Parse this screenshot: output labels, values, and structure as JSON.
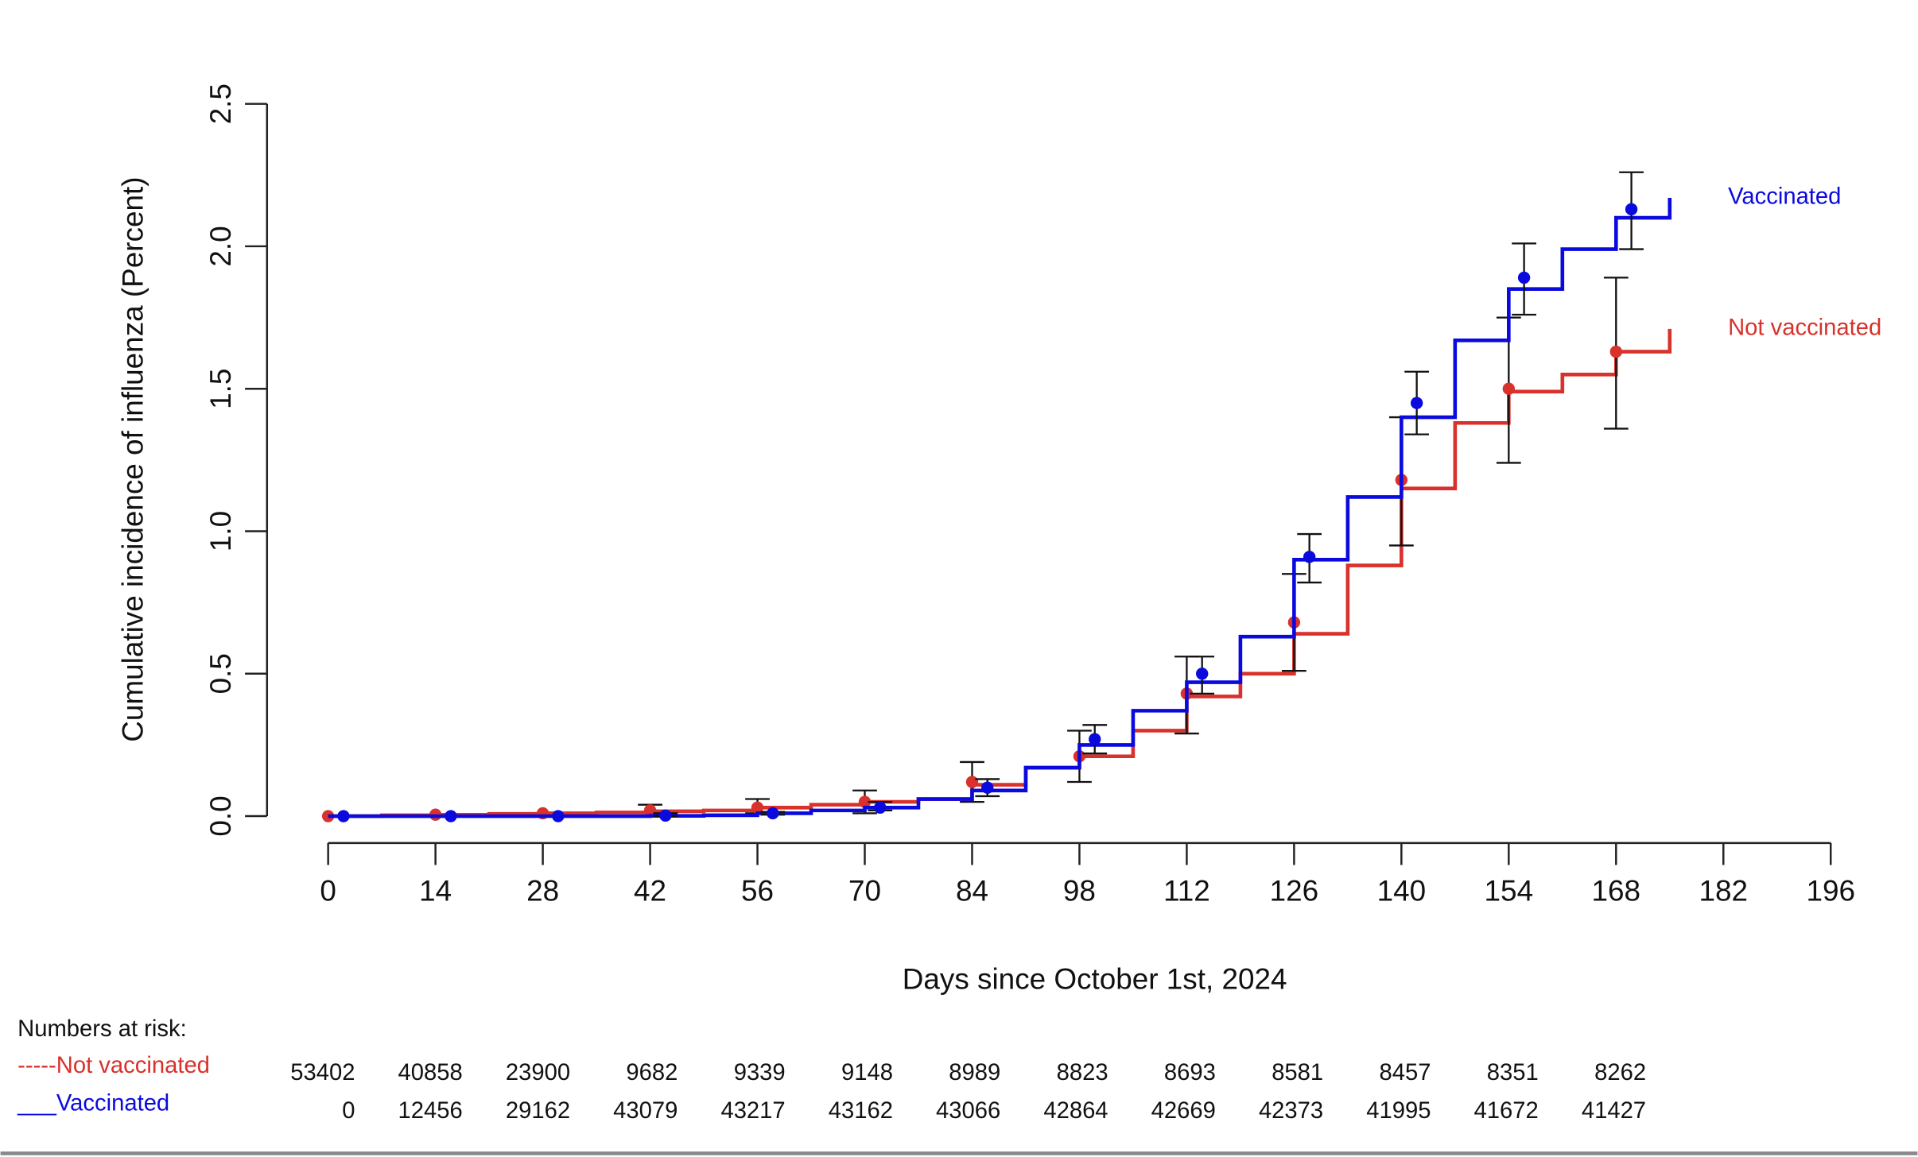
{
  "chart_data": {
    "type": "step",
    "xlabel": "Days since October 1st, 2024",
    "ylabel": "Cumulative incidence of influenza (Percent)",
    "xlim": [
      0,
      196
    ],
    "xticks": [
      0,
      14,
      28,
      42,
      56,
      70,
      84,
      98,
      112,
      126,
      140,
      154,
      168,
      182,
      196
    ],
    "ylim": [
      0,
      2.5
    ],
    "yticks": [
      {
        "value": 0,
        "label": "0.0"
      },
      0.5,
      {
        "value": 1,
        "label": "1.0"
      },
      1.5,
      {
        "value": 2,
        "label": "2.0"
      },
      2.5
    ],
    "x": [
      0,
      7,
      14,
      21,
      28,
      35,
      42,
      49,
      56,
      63,
      70,
      77,
      84,
      91,
      98,
      105,
      112,
      119,
      126,
      133,
      140,
      147,
      154,
      161,
      168,
      175
    ],
    "series": [
      {
        "name": "Not vaccinated",
        "color": "#d9312b",
        "values": [
          0,
          0.003,
          0.005,
          0.008,
          0.01,
          0.013,
          0.017,
          0.02,
          0.03,
          0.04,
          0.05,
          0.06,
          0.11,
          0.17,
          0.21,
          0.3,
          0.42,
          0.5,
          0.64,
          0.88,
          1.15,
          1.38,
          1.49,
          1.55,
          1.63,
          1.71
        ],
        "markers": {
          "x": [
            0,
            14,
            28,
            42,
            56,
            70,
            84,
            98,
            112,
            126,
            140,
            154,
            168
          ],
          "values": [
            0,
            0.005,
            0.01,
            0.02,
            0.03,
            0.05,
            0.12,
            0.21,
            0.43,
            0.68,
            1.18,
            1.5,
            1.63
          ],
          "lower": [
            0,
            0.005,
            0.01,
            0,
            0.01,
            0.01,
            0.05,
            0.12,
            0.29,
            0.51,
            0.95,
            1.24,
            1.36
          ],
          "upper": [
            0,
            0.005,
            0.01,
            0.04,
            0.06,
            0.09,
            0.19,
            0.3,
            0.56,
            0.85,
            1.4,
            1.75,
            1.89
          ]
        }
      },
      {
        "name": "Vaccinated",
        "color": "#0a0adf",
        "values": [
          0,
          0,
          0,
          0,
          0,
          0,
          0.001,
          0.003,
          0.01,
          0.02,
          0.03,
          0.06,
          0.09,
          0.17,
          0.25,
          0.37,
          0.47,
          0.63,
          0.9,
          1.12,
          1.4,
          1.67,
          1.85,
          1.99,
          2.1,
          2.17
        ],
        "markers": {
          "x": [
            2,
            16,
            30,
            44,
            58,
            72,
            86,
            100,
            114,
            128,
            142,
            156,
            170
          ],
          "values": [
            0,
            0,
            0,
            0.002,
            0.01,
            0.03,
            0.1,
            0.27,
            0.5,
            0.91,
            1.45,
            1.89,
            2.13
          ],
          "lower": [
            0,
            0,
            0,
            0,
            0.005,
            0.02,
            0.07,
            0.22,
            0.43,
            0.82,
            1.34,
            1.76,
            1.99
          ],
          "upper": [
            0,
            0,
            0,
            0.01,
            0.015,
            0.05,
            0.13,
            0.32,
            0.56,
            0.99,
            1.56,
            2.01,
            2.26
          ]
        }
      }
    ],
    "risk_table": {
      "title": "Numbers at risk:",
      "rows": [
        {
          "label": "-----Not vaccinated",
          "color": "#d9312b",
          "values": [
            53402,
            40858,
            23900,
            9682,
            9339,
            9148,
            8989,
            8823,
            8693,
            8581,
            8457,
            8351,
            8262
          ]
        },
        {
          "label": "___Vaccinated",
          "color": "#0a0adf",
          "values": [
            0,
            12456,
            29162,
            43079,
            43217,
            43162,
            43066,
            42864,
            42669,
            42373,
            41995,
            41672,
            41427
          ]
        }
      ]
    }
  }
}
